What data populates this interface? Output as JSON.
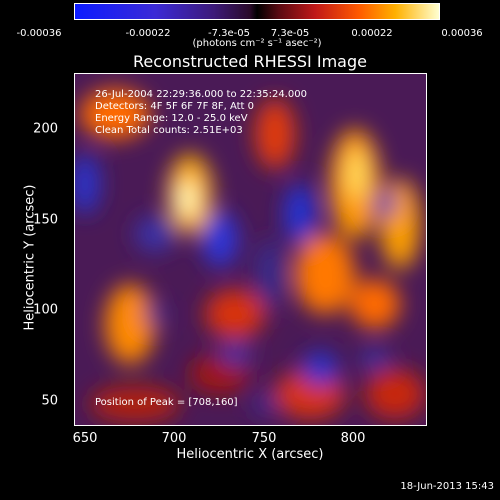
{
  "colorbar": {
    "ticks": [
      "-0.00036",
      "-0.00022",
      "-7.3e-05",
      "7.3e-05",
      "0.00022",
      "0.00036"
    ],
    "unit": "(photons cm⁻² s⁻¹ asec⁻²)"
  },
  "title": "Reconstructed RHESSI Image",
  "info": {
    "line1": "26-Jul-2004 22:29:36.000 to 22:35:24.000",
    "line2": "Detectors: 4F 5F 6F 7F 8F, Att 0",
    "line3": "Energy Range: 12.0 - 25.0 keV",
    "line4": "Clean    Total counts: 2.51E+03",
    "peak": "Position of Peak = [708,160]"
  },
  "axes": {
    "xlabel": "Heliocentric X (arcsec)",
    "ylabel": "Heliocentric Y (arcsec)",
    "xticks": [
      "650",
      "700",
      "750",
      "800"
    ],
    "yticks": [
      "200",
      "150",
      "100",
      "50"
    ]
  },
  "timestamp": "18-Jun-2013 15:43"
}
